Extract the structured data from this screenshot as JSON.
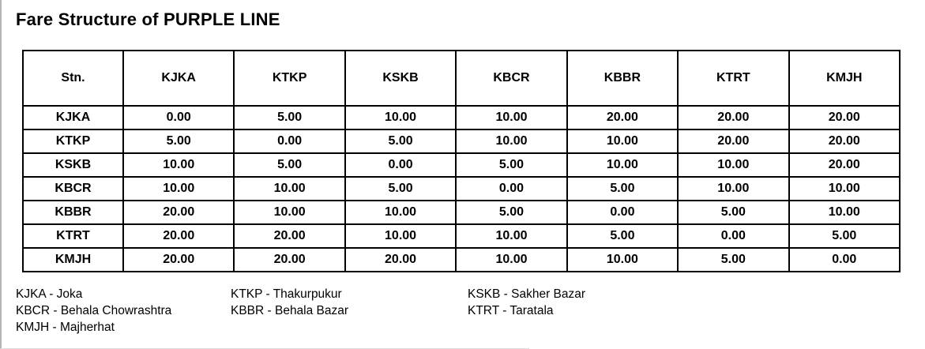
{
  "page": {
    "title": "Fare Structure of PURPLE LINE"
  },
  "fare_table": {
    "corner_header": "Stn.",
    "columns": [
      "KJKA",
      "KTKP",
      "KSKB",
      "KBCR",
      "KBBR",
      "KTRT",
      "KMJH"
    ],
    "rows": [
      {
        "station": "KJKA",
        "fares": [
          "0.00",
          "5.00",
          "10.00",
          "10.00",
          "20.00",
          "20.00",
          "20.00"
        ]
      },
      {
        "station": "KTKP",
        "fares": [
          "5.00",
          "0.00",
          "5.00",
          "10.00",
          "10.00",
          "20.00",
          "20.00"
        ]
      },
      {
        "station": "KSKB",
        "fares": [
          "10.00",
          "5.00",
          "0.00",
          "5.00",
          "10.00",
          "10.00",
          "20.00"
        ]
      },
      {
        "station": "KBCR",
        "fares": [
          "10.00",
          "10.00",
          "5.00",
          "0.00",
          "5.00",
          "10.00",
          "10.00"
        ]
      },
      {
        "station": "KBBR",
        "fares": [
          "20.00",
          "10.00",
          "10.00",
          "5.00",
          "0.00",
          "5.00",
          "10.00"
        ]
      },
      {
        "station": "KTRT",
        "fares": [
          "20.00",
          "20.00",
          "10.00",
          "10.00",
          "5.00",
          "0.00",
          "5.00"
        ]
      },
      {
        "station": "KMJH",
        "fares": [
          "20.00",
          "20.00",
          "20.00",
          "10.00",
          "10.00",
          "5.00",
          "0.00"
        ]
      }
    ]
  },
  "legend": {
    "columns": [
      [
        "KJKA - Joka",
        "KBCR - Behala Chowrashtra",
        "KMJH - Majherhat"
      ],
      [
        "KTKP - Thakurpukur",
        "KBBR - Behala Bazar"
      ],
      [
        "KSKB - Sakher Bazar",
        "KTRT - Taratala"
      ]
    ]
  },
  "colors": {
    "text": "#000000",
    "table_border": "#000000",
    "page_edge": "#b4b4b4"
  }
}
